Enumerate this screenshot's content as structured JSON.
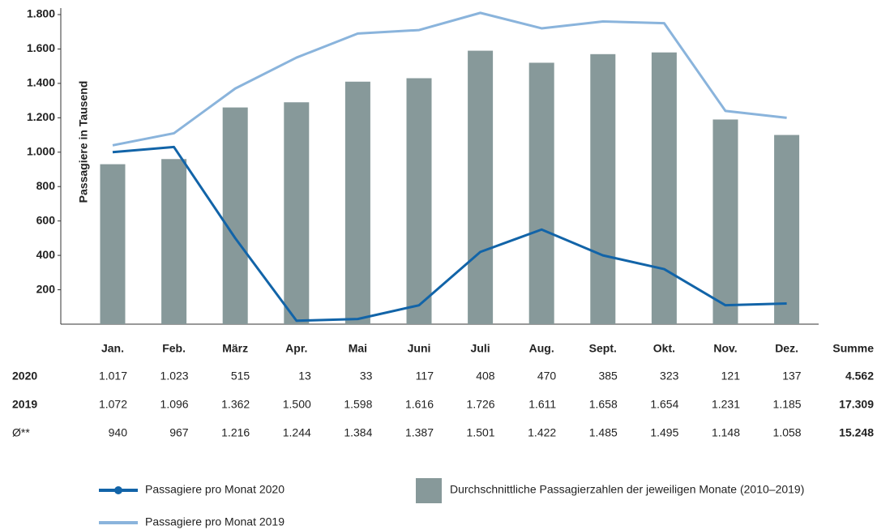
{
  "chart_data": {
    "type": "bar",
    "y_label": "Passagiere in Tausend",
    "categories": [
      "Jan.",
      "Feb.",
      "März",
      "Apr.",
      "Mai",
      "Juni",
      "Juli",
      "Aug.",
      "Sept.",
      "Okt.",
      "Nov.",
      "Dez."
    ],
    "ylim": [
      0,
      1800
    ],
    "yticks": [
      {
        "value": 200,
        "label": "200"
      },
      {
        "value": 400,
        "label": "400"
      },
      {
        "value": 600,
        "label": "600"
      },
      {
        "value": 800,
        "label": "800"
      },
      {
        "value": 1000,
        "label": "1.000"
      },
      {
        "value": 1200,
        "label": "1.200"
      },
      {
        "value": 1400,
        "label": "1.400"
      },
      {
        "value": 1600,
        "label": "1.600"
      },
      {
        "value": 1800,
        "label": "1.800"
      }
    ],
    "series": [
      {
        "name": "Durchschnittliche Passagierzahlen der jeweiligen Monate (2010–2019)",
        "type": "bar",
        "color": "#87999a",
        "values": [
          930,
          960,
          1260,
          1290,
          1410,
          1430,
          1590,
          1520,
          1570,
          1580,
          1190,
          1100
        ]
      },
      {
        "name": "Passagiere pro Monat 2020",
        "type": "line",
        "color": "#1264a8",
        "values": [
          1000,
          1030,
          500,
          20,
          30,
          110,
          420,
          550,
          400,
          320,
          110,
          120
        ]
      },
      {
        "name": "Passagiere pro Monat 2019",
        "type": "line",
        "color": "#8ab4dc",
        "values": [
          1040,
          1110,
          1370,
          1550,
          1690,
          1710,
          1810,
          1720,
          1760,
          1750,
          1240,
          1200
        ]
      }
    ]
  },
  "table": {
    "total_header": "Summe",
    "rows": [
      {
        "label": "2020",
        "values": [
          "1.017",
          "1.023",
          "515",
          "13",
          "33",
          "117",
          "408",
          "470",
          "385",
          "323",
          "121",
          "137"
        ],
        "total": "4.562"
      },
      {
        "label": "2019",
        "values": [
          "1.072",
          "1.096",
          "1.362",
          "1.500",
          "1.598",
          "1.616",
          "1.726",
          "1.611",
          "1.658",
          "1.654",
          "1.231",
          "1.185"
        ],
        "total": "17.309"
      },
      {
        "label": "Ø**",
        "values": [
          "940",
          "967",
          "1.216",
          "1.244",
          "1.384",
          "1.387",
          "1.501",
          "1.422",
          "1.485",
          "1.495",
          "1.148",
          "1.058"
        ],
        "total": "15.248"
      }
    ]
  }
}
